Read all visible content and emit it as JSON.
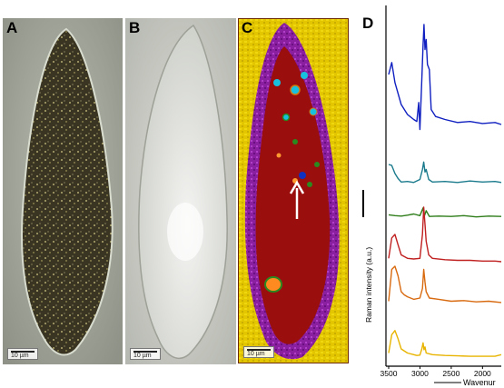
{
  "figure": {
    "panels": [
      {
        "id": "A",
        "label": "A",
        "scale_bar": "10 µm"
      },
      {
        "id": "B",
        "label": "B",
        "scale_bar": "10 µm"
      },
      {
        "id": "C",
        "label": "C",
        "scale_bar": "10 µm"
      },
      {
        "id": "D",
        "label": "D"
      }
    ]
  },
  "chart_data": {
    "type": "line",
    "xlabel": "Wavenur",
    "ylabel": "Raman intensity (a.u.)",
    "xlim": [
      3500,
      1700
    ],
    "x_ticks": [
      "3500",
      "3000",
      "2500",
      "2000"
    ],
    "series": [
      {
        "color": "#1020c0",
        "offset": 0,
        "points": [
          [
            3500,
            0.5
          ],
          [
            3450,
            0.62
          ],
          [
            3400,
            0.42
          ],
          [
            3300,
            0.2
          ],
          [
            3200,
            0.1
          ],
          [
            3100,
            0.05
          ],
          [
            3050,
            0.03
          ],
          [
            3020,
            0.22
          ],
          [
            3000,
            -0.05
          ],
          [
            2970,
            0.45
          ],
          [
            2950,
            0.8
          ],
          [
            2935,
            1.0
          ],
          [
            2920,
            0.75
          ],
          [
            2900,
            0.85
          ],
          [
            2880,
            0.6
          ],
          [
            2850,
            0.55
          ],
          [
            2820,
            0.15
          ],
          [
            2750,
            0.08
          ],
          [
            2600,
            0.05
          ],
          [
            2400,
            0.02
          ],
          [
            2200,
            0.03
          ],
          [
            2000,
            0.01
          ],
          [
            1800,
            0.02
          ],
          [
            1700,
            0.0
          ]
        ]
      },
      {
        "color": "#1a7a8c",
        "offset": 0,
        "points": [
          [
            3500,
            0.4
          ],
          [
            3450,
            0.38
          ],
          [
            3400,
            0.22
          ],
          [
            3350,
            0.12
          ],
          [
            3300,
            0.05
          ],
          [
            3200,
            0.06
          ],
          [
            3100,
            0.04
          ],
          [
            3000,
            0.1
          ],
          [
            2960,
            0.3
          ],
          [
            2940,
            0.45
          ],
          [
            2920,
            0.25
          ],
          [
            2900,
            0.3
          ],
          [
            2860,
            0.1
          ],
          [
            2800,
            0.05
          ],
          [
            2600,
            0.06
          ],
          [
            2400,
            0.04
          ],
          [
            2200,
            0.07
          ],
          [
            2000,
            0.05
          ],
          [
            1800,
            0.06
          ],
          [
            1700,
            0.04
          ]
        ]
      },
      {
        "color": "#2e7d1a",
        "offset": 0,
        "points": [
          [
            3500,
            0.08
          ],
          [
            3400,
            0.06
          ],
          [
            3300,
            0.05
          ],
          [
            3200,
            0.07
          ],
          [
            3100,
            0.1
          ],
          [
            3000,
            0.06
          ],
          [
            2950,
            0.25
          ],
          [
            2930,
            0.05
          ],
          [
            2900,
            0.18
          ],
          [
            2850,
            0.04
          ],
          [
            2700,
            0.05
          ],
          [
            2500,
            0.04
          ],
          [
            2300,
            0.06
          ],
          [
            2100,
            0.03
          ],
          [
            1900,
            0.05
          ],
          [
            1700,
            0.04
          ]
        ]
      },
      {
        "color": "#c02020",
        "offset": 0,
        "points": [
          [
            3500,
            0.05
          ],
          [
            3450,
            0.35
          ],
          [
            3400,
            0.4
          ],
          [
            3350,
            0.25
          ],
          [
            3300,
            0.1
          ],
          [
            3200,
            0.05
          ],
          [
            3100,
            0.04
          ],
          [
            3000,
            0.05
          ],
          [
            2960,
            0.4
          ],
          [
            2940,
            0.8
          ],
          [
            2920,
            0.55
          ],
          [
            2900,
            0.3
          ],
          [
            2860,
            0.1
          ],
          [
            2800,
            0.05
          ],
          [
            2600,
            0.03
          ],
          [
            2400,
            0.02
          ],
          [
            2200,
            0.02
          ],
          [
            2000,
            0.01
          ],
          [
            1800,
            0.01
          ],
          [
            1700,
            0.0
          ]
        ]
      },
      {
        "color": "#d86a10",
        "offset": 0,
        "points": [
          [
            3500,
            0.05
          ],
          [
            3450,
            0.55
          ],
          [
            3400,
            0.6
          ],
          [
            3350,
            0.45
          ],
          [
            3300,
            0.2
          ],
          [
            3250,
            0.15
          ],
          [
            3200,
            0.12
          ],
          [
            3100,
            0.08
          ],
          [
            3000,
            0.1
          ],
          [
            2960,
            0.25
          ],
          [
            2940,
            0.55
          ],
          [
            2920,
            0.35
          ],
          [
            2900,
            0.2
          ],
          [
            2850,
            0.1
          ],
          [
            2700,
            0.08
          ],
          [
            2500,
            0.05
          ],
          [
            2300,
            0.06
          ],
          [
            2100,
            0.04
          ],
          [
            1900,
            0.05
          ],
          [
            1700,
            0.03
          ]
        ]
      },
      {
        "color": "#e8b400",
        "offset": 0,
        "points": [
          [
            3500,
            0.1
          ],
          [
            3450,
            0.55
          ],
          [
            3400,
            0.65
          ],
          [
            3350,
            0.45
          ],
          [
            3300,
            0.2
          ],
          [
            3200,
            0.1
          ],
          [
            3100,
            0.06
          ],
          [
            3050,
            0.04
          ],
          [
            3000,
            0.05
          ],
          [
            2970,
            0.2
          ],
          [
            2950,
            0.35
          ],
          [
            2935,
            0.18
          ],
          [
            2920,
            0.25
          ],
          [
            2900,
            0.1
          ],
          [
            2800,
            0.06
          ],
          [
            2600,
            0.04
          ],
          [
            2400,
            0.03
          ],
          [
            2200,
            0.02
          ],
          [
            2000,
            0.02
          ],
          [
            1800,
            0.02
          ],
          [
            1700,
            0.06
          ]
        ]
      }
    ]
  }
}
